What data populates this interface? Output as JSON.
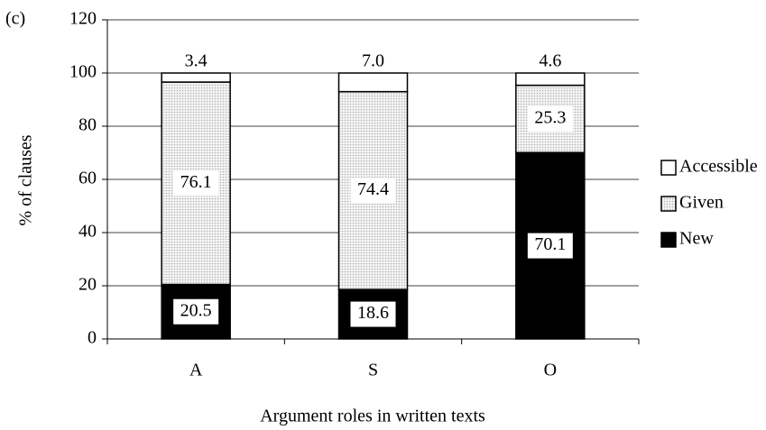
{
  "chart_data": {
    "type": "stacked_bar",
    "panel_label": "(c)",
    "x_label": "Argument roles in written texts",
    "y_label": "% of clauses",
    "categories": [
      "A",
      "S",
      "O"
    ],
    "series": [
      {
        "name": "New",
        "color": "#000000",
        "values": [
          20.5,
          18.6,
          70.1
        ]
      },
      {
        "name": "Given",
        "color": "#b0b0b0",
        "pattern": "dotted",
        "values": [
          76.1,
          74.4,
          25.3
        ]
      },
      {
        "name": "Accessible",
        "color": "#ffffff",
        "values": [
          3.4,
          7.0,
          4.6
        ],
        "value_labels": [
          "3.4",
          "7.0",
          "4.6"
        ]
      }
    ],
    "ylim": [
      0,
      120
    ],
    "yticks": [
      0,
      20,
      40,
      60,
      80,
      100,
      120
    ],
    "grid": true,
    "legend": "right"
  }
}
